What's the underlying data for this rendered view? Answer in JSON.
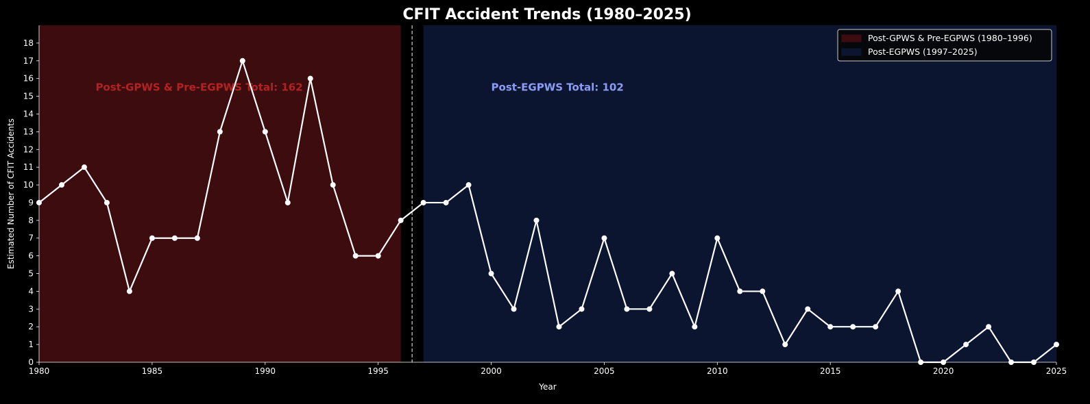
{
  "chart_data": {
    "type": "line",
    "title": "CFIT Accident Trends (1980–2025)",
    "xlabel": "Year",
    "ylabel": "Estimated Number of CFIT Accidents",
    "xlim": [
      1980,
      2025
    ],
    "ylim": [
      0,
      19
    ],
    "x_ticks": [
      1980,
      1985,
      1990,
      1995,
      2000,
      2005,
      2010,
      2015,
      2020,
      2025
    ],
    "y_ticks": [
      0,
      1,
      2,
      3,
      4,
      5,
      6,
      7,
      8,
      9,
      10,
      11,
      12,
      13,
      14,
      15,
      16,
      17,
      18
    ],
    "grid": false,
    "legend_position": "upper right",
    "x": [
      1980,
      1981,
      1982,
      1983,
      1984,
      1985,
      1986,
      1987,
      1988,
      1989,
      1990,
      1991,
      1992,
      1993,
      1994,
      1995,
      1996,
      1997,
      1998,
      1999,
      2000,
      2001,
      2002,
      2003,
      2004,
      2005,
      2006,
      2007,
      2008,
      2009,
      2010,
      2011,
      2012,
      2013,
      2014,
      2015,
      2016,
      2017,
      2018,
      2019,
      2020,
      2021,
      2022,
      2023,
      2024,
      2025
    ],
    "series": [
      {
        "name": "CFIT Accidents",
        "color": "#ffffff",
        "values": [
          9,
          10,
          11,
          9,
          4,
          7,
          7,
          7,
          13,
          17,
          13,
          9,
          16,
          10,
          6,
          6,
          8,
          9,
          9,
          10,
          5,
          3,
          8,
          2,
          3,
          7,
          3,
          3,
          5,
          2,
          7,
          4,
          4,
          1,
          3,
          2,
          2,
          2,
          4,
          0,
          0,
          1,
          2,
          0,
          0,
          1
        ]
      }
    ],
    "spans": [
      {
        "label": "Post-GPWS & Pre-EGPWS (1980–1996)",
        "start": 1980,
        "end": 1996,
        "color": "#3d0c0e"
      },
      {
        "label": "Post-EGPWS (1997–2025)",
        "start": 1997,
        "end": 2025,
        "color": "#0b1530"
      }
    ],
    "divider": {
      "x": 1996.5,
      "style": "dashed",
      "color": "#cccccc"
    },
    "annotations": [
      {
        "text": "Post-GPWS & Pre-EGPWS Total: 162",
        "x": 1982.5,
        "y": 15.5,
        "color": "#b22222"
      },
      {
        "text": "Post-EGPWS Total: 102",
        "x": 2000,
        "y": 15.5,
        "color": "#8c9cf5"
      }
    ],
    "totals": {
      "pre_egpws": 162,
      "post_egpws": 102
    }
  }
}
